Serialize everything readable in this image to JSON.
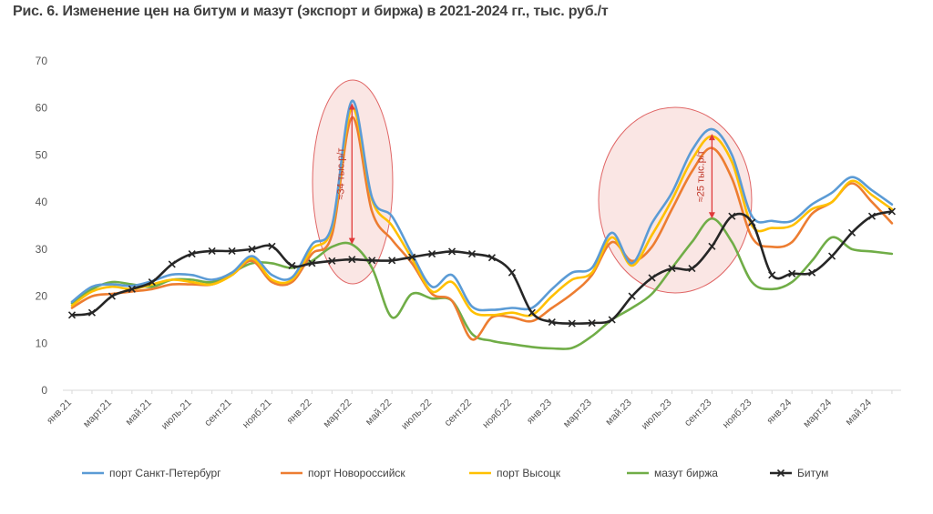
{
  "title": "Рис. 6. Изменение цен на битум и мазут (экспорт и биржа) в 2021-2024 гг., тыс. руб./т",
  "chart_data": {
    "type": "line",
    "title": "Рис. 6. Изменение цен на битум и мазут (экспорт и биржа) в 2021-2024 гг., тыс. руб./т",
    "xlabel": "",
    "ylabel": "",
    "ylim": [
      0,
      70
    ],
    "yticks": [
      0,
      10,
      20,
      30,
      40,
      50,
      60,
      70
    ],
    "grid": false,
    "legend_position": "bottom",
    "x_labels": [
      "янв.21",
      "март.21",
      "май.21",
      "июль.21",
      "сент.21",
      "нояб.21",
      "янв.22",
      "март.22",
      "май.22",
      "июль.22",
      "сент.22",
      "нояб.22",
      "янв.23",
      "март.23",
      "май.23",
      "июль.23",
      "сент.23",
      "нояб.23",
      "янв.24",
      "март.24",
      "май.24"
    ],
    "months": [
      "янв.21",
      "фев.21",
      "март.21",
      "апр.21",
      "май.21",
      "июнь.21",
      "июль.21",
      "авг.21",
      "сент.21",
      "окт.21",
      "нояб.21",
      "дек.21",
      "янв.22",
      "фев.22",
      "март.22",
      "апр.22",
      "май.22",
      "июнь.22",
      "июль.22",
      "авг.22",
      "сент.22",
      "окт.22",
      "нояб.22",
      "дек.22",
      "янв.23",
      "фев.23",
      "март.23",
      "апр.23",
      "май.23",
      "июнь.23",
      "июль.23",
      "авг.23",
      "сент.23",
      "окт.23",
      "нояб.23",
      "дек.23",
      "янв.24",
      "фев.24",
      "март.24",
      "апр.24",
      "май.24",
      "июнь.24"
    ],
    "series": [
      {
        "name": "порт Санкт-Петербург",
        "color": "#5b9bd5",
        "marker": "none",
        "values": [
          18.8,
          22.0,
          22.5,
          22.2,
          23.2,
          24.6,
          24.5,
          23.5,
          25.0,
          28.5,
          24.5,
          24.0,
          31.0,
          35.0,
          61.5,
          41.0,
          37.0,
          29.0,
          22.0,
          24.5,
          17.8,
          17.1,
          17.5,
          17.5,
          21.5,
          25.0,
          26.0,
          33.5,
          27.0,
          35.5,
          42.0,
          51.0,
          55.5,
          50.0,
          37.0,
          36.0,
          36.0,
          39.5,
          42.0,
          45.3,
          42.5,
          39.5
        ]
      },
      {
        "name": "порт Новороссийск",
        "color": "#ed7d31",
        "marker": "none",
        "values": [
          17.5,
          20.0,
          20.5,
          21.0,
          21.5,
          22.5,
          22.5,
          22.5,
          24.5,
          27.5,
          23.0,
          23.0,
          29.0,
          33.0,
          58.0,
          38.0,
          32.0,
          27.0,
          20.5,
          19.0,
          10.8,
          15.5,
          15.5,
          14.7,
          17.5,
          20.5,
          24.5,
          31.5,
          27.5,
          30.5,
          38.5,
          46.5,
          51.5,
          45.0,
          32.5,
          30.5,
          31.5,
          37.5,
          40.0,
          44.0,
          40.0,
          35.5
        ]
      },
      {
        "name": "порт Высоцк",
        "color": "#ffc000",
        "marker": "none",
        "values": [
          18.0,
          21.0,
          22.0,
          21.5,
          22.5,
          23.5,
          23.0,
          22.5,
          24.5,
          28.0,
          23.5,
          23.5,
          30.0,
          34.5,
          60.0,
          40.5,
          35.0,
          28.0,
          21.0,
          23.0,
          16.8,
          16.0,
          16.5,
          16.0,
          20.0,
          23.5,
          25.0,
          32.5,
          26.5,
          33.0,
          40.5,
          49.0,
          54.0,
          48.5,
          35.0,
          34.5,
          35.0,
          38.5,
          40.0,
          44.5,
          41.5,
          38.5
        ]
      },
      {
        "name": "мазут биржа",
        "color": "#70ad47",
        "marker": "none",
        "values": [
          18.5,
          21.5,
          23.0,
          22.5,
          22.0,
          23.5,
          23.5,
          23.0,
          25.0,
          27.0,
          27.0,
          26.0,
          27.5,
          30.5,
          31.0,
          26.0,
          15.5,
          20.5,
          19.5,
          19.0,
          12.0,
          10.5,
          9.8,
          9.2,
          8.9,
          9.0,
          11.5,
          15.0,
          17.5,
          20.5,
          26.0,
          31.5,
          36.5,
          31.5,
          23.0,
          21.5,
          23.0,
          27.5,
          32.5,
          30.0,
          29.5,
          29.0
        ]
      },
      {
        "name": "Битум",
        "color": "#262626",
        "marker": "x",
        "values": [
          16.0,
          16.5,
          20.0,
          21.5,
          23.0,
          26.8,
          29.0,
          29.6,
          29.6,
          30.0,
          30.6,
          26.5,
          27.0,
          27.5,
          27.8,
          27.6,
          27.6,
          28.3,
          29.0,
          29.5,
          29.0,
          28.2,
          25.0,
          16.5,
          14.5,
          14.2,
          14.3,
          15.0,
          20.0,
          23.9,
          25.9,
          25.9,
          30.6,
          37.0,
          35.7,
          24.5,
          24.8,
          25.0,
          28.5,
          33.5,
          37.0,
          38.0
        ]
      }
    ],
    "annotations": [
      {
        "text": "≈34 тыс.р/т",
        "x_from": "март.22",
        "y_from": 31.0,
        "y_to": 61.0
      },
      {
        "text": "≈25 тыс.р/т",
        "x_from": "сент.23",
        "y_from": 36.5,
        "y_to": 54.5
      }
    ]
  }
}
